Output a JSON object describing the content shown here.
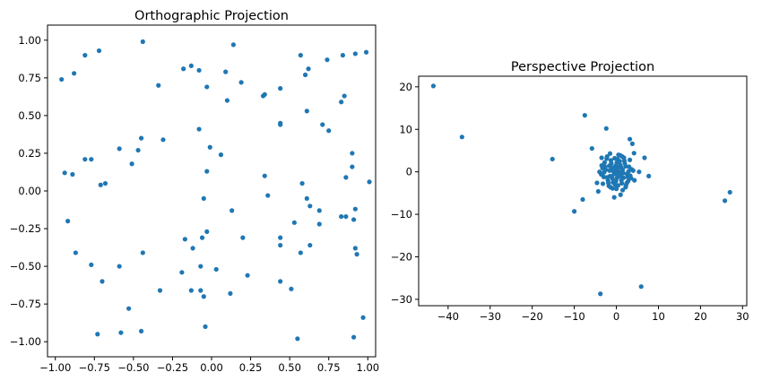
{
  "chart_data": [
    {
      "type": "scatter",
      "title": "Orthographic Projection",
      "xlabel": "",
      "ylabel": "",
      "xlim": [
        -1.05,
        1.05
      ],
      "ylim": [
        -1.1,
        1.1
      ],
      "xticks": [
        "−1.00",
        "−0.75",
        "−0.50",
        "−0.25",
        "0.00",
        "0.25",
        "0.50",
        "0.75",
        "1.00"
      ],
      "yticks": [
        "−1.00",
        "−0.75",
        "−0.50",
        "−0.25",
        "0.00",
        "0.25",
        "0.50",
        "0.75",
        "1.00"
      ],
      "xtick_values": [
        -1,
        -0.75,
        -0.5,
        -0.25,
        0,
        0.25,
        0.5,
        0.75,
        1
      ],
      "ytick_values": [
        -1,
        -0.75,
        -0.5,
        -0.25,
        0,
        0.25,
        0.5,
        0.75,
        1
      ],
      "color": "#1f77b4",
      "points": [
        [
          -0.96,
          0.74
        ],
        [
          -0.88,
          0.78
        ],
        [
          -0.81,
          0.9
        ],
        [
          -0.72,
          0.93
        ],
        [
          -0.44,
          0.99
        ],
        [
          -0.34,
          0.7
        ],
        [
          -0.18,
          0.81
        ],
        [
          -0.13,
          0.83
        ],
        [
          -0.08,
          0.8
        ],
        [
          -0.03,
          0.69
        ],
        [
          0.09,
          0.79
        ],
        [
          0.14,
          0.97
        ],
        [
          0.19,
          0.72
        ],
        [
          0.1,
          0.6
        ],
        [
          0.33,
          0.63
        ],
        [
          0.34,
          0.64
        ],
        [
          0.44,
          0.68
        ],
        [
          0.57,
          0.9
        ],
        [
          0.6,
          0.77
        ],
        [
          0.62,
          0.81
        ],
        [
          0.74,
          0.87
        ],
        [
          0.84,
          0.9
        ],
        [
          0.92,
          0.91
        ],
        [
          0.99,
          0.92
        ],
        [
          0.83,
          0.59
        ],
        [
          0.85,
          0.63
        ],
        [
          0.61,
          0.53
        ],
        [
          0.44,
          0.45
        ],
        [
          0.44,
          0.44
        ],
        [
          0.71,
          0.44
        ],
        [
          0.75,
          0.4
        ],
        [
          -0.45,
          0.35
        ],
        [
          -0.31,
          0.34
        ],
        [
          -0.59,
          0.28
        ],
        [
          -0.47,
          0.27
        ],
        [
          -0.51,
          0.18
        ],
        [
          -0.08,
          0.41
        ],
        [
          -0.01,
          0.29
        ],
        [
          0.06,
          0.24
        ],
        [
          -0.03,
          0.13
        ],
        [
          -0.81,
          0.21
        ],
        [
          -0.77,
          0.21
        ],
        [
          -0.94,
          0.12
        ],
        [
          -0.89,
          0.11
        ],
        [
          -0.71,
          0.04
        ],
        [
          -0.68,
          0.05
        ],
        [
          0.34,
          0.1
        ],
        [
          0.36,
          -0.03
        ],
        [
          0.58,
          0.05
        ],
        [
          0.61,
          -0.05
        ],
        [
          0.63,
          -0.1
        ],
        [
          0.69,
          -0.13
        ],
        [
          0.86,
          0.09
        ],
        [
          0.9,
          0.25
        ],
        [
          0.9,
          0.16
        ],
        [
          1.01,
          0.06
        ],
        [
          0.92,
          -0.12
        ],
        [
          0.83,
          -0.17
        ],
        [
          0.86,
          -0.17
        ],
        [
          0.91,
          -0.19
        ],
        [
          -0.05,
          -0.05
        ],
        [
          -0.03,
          -0.27
        ],
        [
          0.13,
          -0.13
        ],
        [
          0.2,
          -0.31
        ],
        [
          -0.17,
          -0.32
        ],
        [
          -0.12,
          -0.38
        ],
        [
          -0.06,
          -0.31
        ],
        [
          -0.92,
          -0.2
        ],
        [
          -0.87,
          -0.41
        ],
        [
          -0.77,
          -0.49
        ],
        [
          -0.7,
          -0.6
        ],
        [
          -0.59,
          -0.5
        ],
        [
          -0.44,
          -0.41
        ],
        [
          -0.19,
          -0.54
        ],
        [
          -0.07,
          -0.5
        ],
        [
          0.03,
          -0.52
        ],
        [
          0.23,
          -0.56
        ],
        [
          0.44,
          -0.36
        ],
        [
          0.44,
          -0.31
        ],
        [
          0.53,
          -0.21
        ],
        [
          0.57,
          -0.41
        ],
        [
          0.63,
          -0.36
        ],
        [
          0.69,
          -0.22
        ],
        [
          0.92,
          -0.38
        ],
        [
          0.93,
          -0.42
        ],
        [
          -0.33,
          -0.66
        ],
        [
          -0.13,
          -0.66
        ],
        [
          -0.07,
          -0.66
        ],
        [
          -0.05,
          -0.7
        ],
        [
          0.12,
          -0.68
        ],
        [
          0.44,
          -0.6
        ],
        [
          0.51,
          -0.65
        ],
        [
          -0.53,
          -0.78
        ],
        [
          -0.73,
          -0.95
        ],
        [
          -0.58,
          -0.94
        ],
        [
          -0.45,
          -0.93
        ],
        [
          -0.04,
          -0.9
        ],
        [
          0.55,
          -0.98
        ],
        [
          0.91,
          -0.97
        ],
        [
          0.97,
          -0.84
        ]
      ]
    },
    {
      "type": "scatter",
      "title": "Perspective Projection",
      "xlabel": "",
      "ylabel": "",
      "xlim": [
        -47,
        31
      ],
      "ylim": [
        -31.5,
        22.5
      ],
      "xticks": [
        "−40",
        "−30",
        "−20",
        "−10",
        "0",
        "10",
        "20",
        "30"
      ],
      "yticks": [
        "−30",
        "−20",
        "−10",
        "0",
        "10",
        "20"
      ],
      "xtick_values": [
        -40,
        -30,
        -20,
        -10,
        0,
        10,
        20,
        30
      ],
      "ytick_values": [
        -30,
        -20,
        -10,
        0,
        10,
        20
      ],
      "color": "#1f77b4",
      "points": [
        [
          -43.5,
          20.2
        ],
        [
          -36.7,
          8.2
        ],
        [
          -15.2,
          3.0
        ],
        [
          -7.5,
          13.3
        ],
        [
          -2.4,
          10.2
        ],
        [
          -5.8,
          5.5
        ],
        [
          -10.0,
          -9.3
        ],
        [
          -8.0,
          -6.5
        ],
        [
          -3.8,
          -28.7
        ],
        [
          5.9,
          -27.0
        ],
        [
          25.8,
          -6.8
        ],
        [
          27.0,
          -4.8
        ],
        [
          7.7,
          -1.0
        ],
        [
          6.7,
          3.3
        ],
        [
          5.4,
          0.0
        ],
        [
          3.2,
          7.7
        ],
        [
          3.8,
          6.6
        ],
        [
          4.2,
          4.4
        ],
        [
          0.0,
          0.0
        ],
        [
          0.5,
          1.0
        ],
        [
          -0.5,
          -0.5
        ],
        [
          1.0,
          -1.0
        ],
        [
          -1.0,
          1.0
        ],
        [
          1.5,
          0.5
        ],
        [
          -1.5,
          -1.0
        ],
        [
          2.0,
          2.0
        ],
        [
          -2.0,
          -2.0
        ],
        [
          0.8,
          2.5
        ],
        [
          -0.8,
          -2.5
        ],
        [
          2.5,
          -0.5
        ],
        [
          -2.5,
          0.5
        ],
        [
          1.2,
          -2.0
        ],
        [
          -1.2,
          2.0
        ],
        [
          3.0,
          1.2
        ],
        [
          -3.0,
          -1.2
        ],
        [
          0.3,
          3.0
        ],
        [
          -0.3,
          -3.0
        ],
        [
          2.8,
          -2.2
        ],
        [
          -2.8,
          2.2
        ],
        [
          3.5,
          -1.5
        ],
        [
          -3.5,
          1.5
        ],
        [
          1.8,
          3.3
        ],
        [
          -1.8,
          -3.3
        ],
        [
          0.0,
          -4.0
        ],
        [
          0.5,
          4.0
        ],
        [
          -4.0,
          0.0
        ],
        [
          4.0,
          0.3
        ],
        [
          2.2,
          -3.6
        ],
        [
          -2.2,
          3.6
        ],
        [
          3.2,
          2.8
        ],
        [
          -3.2,
          -2.8
        ],
        [
          1.0,
          -5.4
        ],
        [
          -0.5,
          -6.0
        ],
        [
          -4.3,
          -4.6
        ],
        [
          -4.6,
          -2.6
        ],
        [
          -3.5,
          3.3
        ],
        [
          4.3,
          -2.0
        ],
        [
          2.5,
          -2.6
        ],
        [
          0.9,
          1.6
        ],
        [
          -0.9,
          -1.6
        ],
        [
          1.6,
          -0.3
        ],
        [
          -1.6,
          0.3
        ],
        [
          0.2,
          -1.4
        ],
        [
          -0.2,
          1.4
        ],
        [
          1.1,
          1.1
        ],
        [
          -1.1,
          -1.1
        ],
        [
          0.6,
          -0.6
        ],
        [
          -0.6,
          0.6
        ],
        [
          2.2,
          1.3
        ],
        [
          -2.2,
          -1.3
        ],
        [
          1.3,
          -2.7
        ],
        [
          -1.3,
          2.7
        ],
        [
          3.6,
          0.6
        ],
        [
          -3.6,
          -0.6
        ],
        [
          0.1,
          2.2
        ],
        [
          -0.1,
          -2.2
        ],
        [
          2.7,
          -1.2
        ],
        [
          -2.7,
          1.2
        ],
        [
          0.4,
          -3.2
        ],
        [
          -0.4,
          3.2
        ],
        [
          1.9,
          2.6
        ],
        [
          -1.9,
          -2.6
        ],
        [
          2.9,
          0.1
        ],
        [
          -2.9,
          -0.1
        ],
        [
          1.4,
          3.6
        ],
        [
          -1.4,
          -3.6
        ],
        [
          0.7,
          -0.1
        ],
        [
          -0.7,
          0.1
        ],
        [
          1.7,
          -1.4
        ],
        [
          -1.7,
          1.4
        ],
        [
          0.3,
          0.5
        ],
        [
          -0.3,
          -0.5
        ],
        [
          2.3,
          -3.1
        ],
        [
          -2.3,
          3.1
        ],
        [
          3.3,
          -0.9
        ],
        [
          -3.3,
          0.9
        ],
        [
          0.9,
          3.9
        ],
        [
          -0.9,
          -3.9
        ],
        [
          1.5,
          -4.3
        ],
        [
          -1.5,
          4.3
        ]
      ]
    }
  ]
}
